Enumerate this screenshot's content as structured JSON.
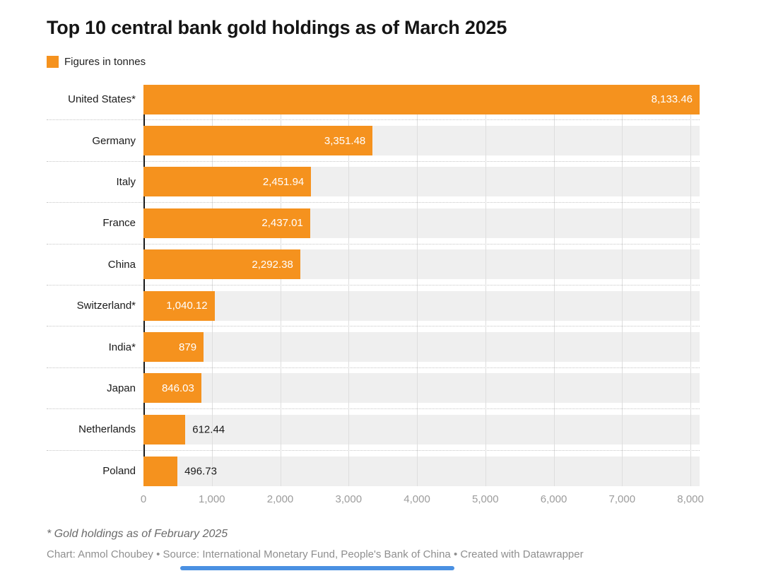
{
  "header": {
    "title": "Top 10 central bank gold holdings as of March 2025",
    "legend_label": "Figures in tonnes"
  },
  "chart_data": {
    "type": "bar",
    "orientation": "horizontal",
    "title": "Top 10 central bank gold holdings as of March 2025",
    "legend": "Figures in tonnes",
    "unit": "tonnes",
    "categories": [
      "United States*",
      "Germany",
      "Italy",
      "France",
      "China",
      "Switzerland*",
      "India*",
      "Japan",
      "Netherlands",
      "Poland"
    ],
    "values": [
      8133.46,
      3351.48,
      2451.94,
      2437.01,
      2292.38,
      1040.12,
      879,
      846.03,
      612.44,
      496.73
    ],
    "value_labels": [
      "8,133.46",
      "3,351.48",
      "2,451.94",
      "2,437.01",
      "2,292.38",
      "1,040.12",
      "879",
      "846.03",
      "612.44",
      "496.73"
    ],
    "value_label_position": [
      "inside",
      "inside",
      "inside",
      "inside",
      "inside",
      "inside",
      "inside",
      "inside",
      "outside",
      "outside"
    ],
    "xlim": [
      0,
      8133.46
    ],
    "x_ticks": [
      {
        "value": 0,
        "label": "0"
      },
      {
        "value": 1000,
        "label": "1,000"
      },
      {
        "value": 2000,
        "label": "2,000"
      },
      {
        "value": 3000,
        "label": "3,000"
      },
      {
        "value": 4000,
        "label": "4,000"
      },
      {
        "value": 5000,
        "label": "5,000"
      },
      {
        "value": 6000,
        "label": "6,000"
      },
      {
        "value": 7000,
        "label": "7,000"
      },
      {
        "value": 8000,
        "label": "8,000"
      }
    ],
    "grid": true,
    "legend_position": "top-left",
    "colors": {
      "bar": "#F5921E",
      "track": "#EFEFEF",
      "gridline": "#DEDEDE",
      "axis_line": "#1A1A1A",
      "row_separator": "#C6C6C6",
      "value_inside_text": "#FFFFFF",
      "value_outside_text": "#1A1A1A",
      "axis_text": "#9C9C9C"
    }
  },
  "footer": {
    "footnote": "* Gold holdings as of February 2025",
    "credit": "Chart: Anmol Choubey • Source: International Monetary Fund, People's Bank of China • Created with Datawrapper"
  }
}
